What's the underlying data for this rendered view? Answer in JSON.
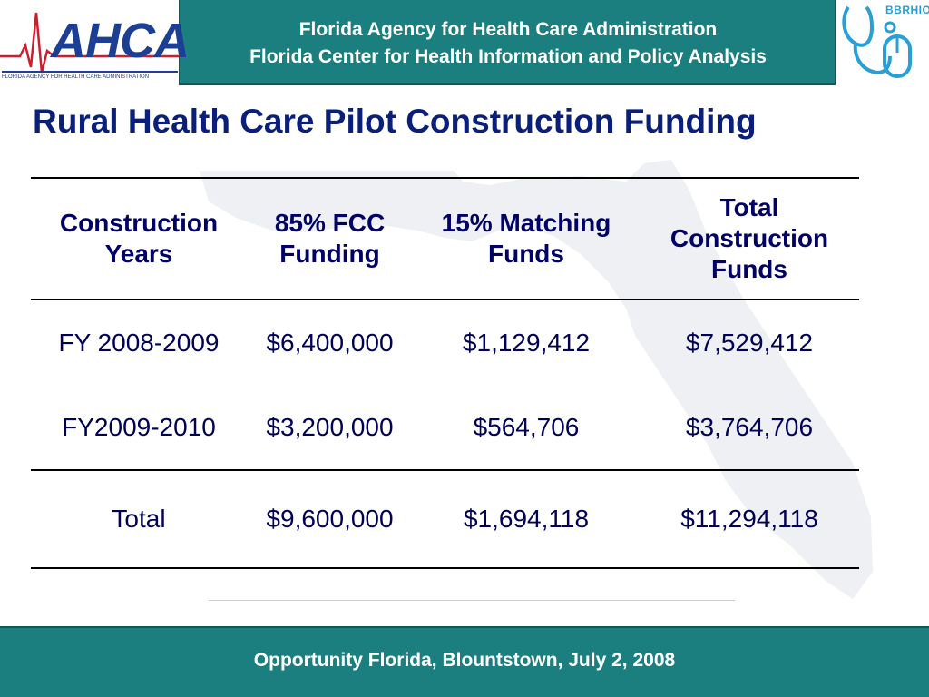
{
  "header": {
    "logo_left": {
      "text": "AHCA",
      "tagline": "FLORIDA AGENCY FOR HEALTH CARE ADMINISTRATION",
      "icon": "heartbeat-icon"
    },
    "title_line1": "Florida Agency for Health Care Administration",
    "title_line2": "Florida Center for Health Information and Policy Analysis",
    "logo_right": {
      "text": "BBRHIO",
      "icon": "stethoscope-mouse-icon"
    }
  },
  "slide": {
    "title": "Rural Health Care Pilot Construction Funding",
    "watermark_icon": "florida-map-icon"
  },
  "table": {
    "headers": [
      "Construction Years",
      "85% FCC Funding",
      "15% Matching Funds",
      "Total Construction Funds"
    ],
    "rows": [
      [
        "FY 2008-2009",
        "$6,400,000",
        "$1,129,412",
        "$7,529,412"
      ],
      [
        "FY2009-2010",
        "$3,200,000",
        "$564,706",
        "$3,764,706"
      ],
      [
        "Total",
        "$9,600,000",
        "$1,694,118",
        "$11,294,118"
      ]
    ]
  },
  "footer": {
    "text": "Opportunity Florida, Blountstown, July 2, 2008"
  },
  "colors": {
    "band": "#1a7f7e",
    "title": "#0a1f7a",
    "table_text": "#000066",
    "logo_blue": "#1c3f94",
    "logo_red": "#cc1f2d"
  }
}
